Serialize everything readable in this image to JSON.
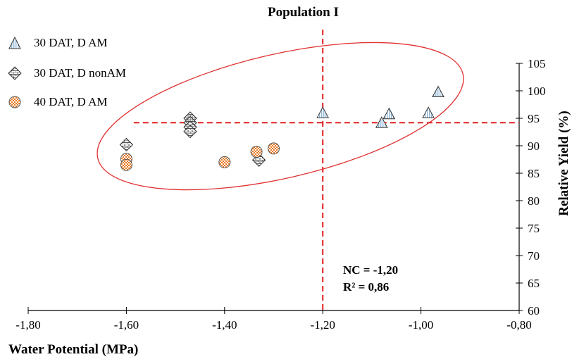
{
  "title": "Population I",
  "xlabel": "Water Potential (MPa)",
  "ylabel": "Relative Yield  (%)",
  "annotations": {
    "nc": "NC = -1,20",
    "r2": "R² = 0,86"
  },
  "colors": {
    "reference_lines": "#e02020",
    "ellipse": "#e03030",
    "orange": "#e8781e",
    "blue": "#8fb8d8"
  },
  "chart_data": {
    "type": "scatter",
    "title": "Population I",
    "xlabel": "Water Potential (MPa)",
    "ylabel": "Relative Yield  (%)",
    "xlim": [
      -1.8,
      -0.8
    ],
    "ylim": [
      60,
      105
    ],
    "x_ticks": [
      "-1,80",
      "-1,60",
      "-1,40",
      "-1,20",
      "-1,00",
      "-0,80"
    ],
    "y_ticks": [
      "60",
      "65",
      "70",
      "75",
      "80",
      "85",
      "90",
      "95",
      "100",
      "105"
    ],
    "grid": false,
    "legend_position": "top-left",
    "series": [
      {
        "name": "30 DAT, D AM",
        "marker": "triangle",
        "points": [
          [
            -1.2,
            96.0
          ],
          [
            -1.08,
            94.2
          ],
          [
            -1.065,
            95.8
          ],
          [
            -0.985,
            96.0
          ],
          [
            -0.965,
            99.8
          ]
        ]
      },
      {
        "name": "30 DAT, D nonAM",
        "marker": "diamond",
        "points": [
          [
            -1.6,
            90.2
          ],
          [
            -1.47,
            95.0
          ],
          [
            -1.47,
            94.2
          ],
          [
            -1.47,
            93.4
          ],
          [
            -1.47,
            92.6
          ],
          [
            -1.33,
            87.4
          ]
        ]
      },
      {
        "name": "40 DAT, D AM",
        "marker": "circle",
        "points": [
          [
            -1.6,
            87.6
          ],
          [
            -1.6,
            86.5
          ],
          [
            -1.4,
            87.0
          ],
          [
            -1.335,
            88.9
          ],
          [
            -1.3,
            89.5
          ]
        ]
      }
    ],
    "reference_lines": {
      "vertical_x": -1.2,
      "horizontal_y": 94.2
    },
    "annotations": [
      "NC = -1,20",
      "R² = 0,86"
    ]
  }
}
